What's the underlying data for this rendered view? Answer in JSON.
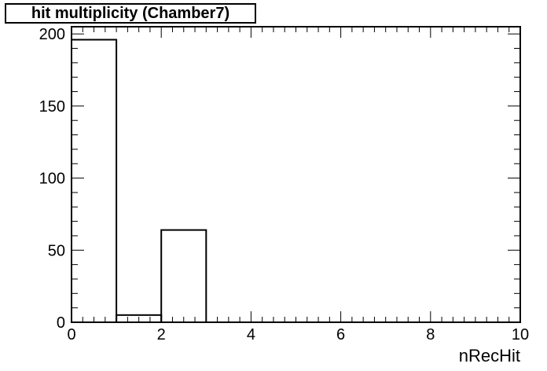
{
  "chart_data": {
    "type": "bar",
    "title": "hit multiplicity (Chamber7)",
    "xlabel": "nRecHit",
    "ylabel": "",
    "bin_edges": [
      0,
      1,
      2,
      3,
      4,
      5,
      6,
      7,
      8,
      9,
      10
    ],
    "values": [
      196,
      5,
      64,
      0,
      0,
      0,
      0,
      0,
      0,
      0
    ],
    "xlim": [
      0,
      10
    ],
    "ylim": [
      0,
      205
    ],
    "x_ticks": [
      "0",
      "2",
      "4",
      "6",
      "8",
      "10"
    ],
    "y_ticks": [
      "0",
      "50",
      "100",
      "150",
      "200"
    ],
    "grid": false,
    "style": "histogram-step",
    "line_color": "#000000"
  }
}
